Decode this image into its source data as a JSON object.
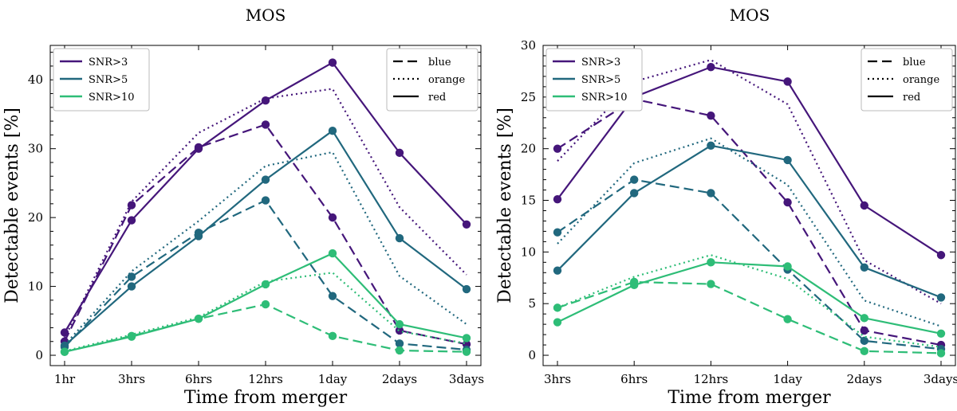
{
  "colors": {
    "snr3": "#45167a",
    "snr5": "#21687e",
    "snr10": "#2ebd77"
  },
  "chart_data": [
    {
      "type": "line",
      "title": "MOS",
      "xlabel": "Time from merger",
      "ylabel": "Detectable events [%]",
      "categories": [
        "1hr",
        "3hrs",
        "6hrs",
        "12hrs",
        "1day",
        "2days",
        "3days"
      ],
      "ylim": [
        -1.5,
        45
      ],
      "yticks": [
        0,
        10,
        20,
        30,
        40
      ],
      "legend_snr": [
        "SNR>3",
        "SNR>5",
        "SNR>10"
      ],
      "legend_style": [
        "blue",
        "orange",
        "red"
      ],
      "legend_snr_placement": "top-left",
      "legend_style_placement": "top-right",
      "series": [
        {
          "snr": "SNR>3",
          "style": "red",
          "values": [
            3.3,
            19.6,
            30.0,
            37.0,
            42.5,
            29.4,
            19.0
          ]
        },
        {
          "snr": "SNR>3",
          "style": "blue",
          "values": [
            2.0,
            21.8,
            30.2,
            33.5,
            20.0,
            3.6,
            1.6
          ]
        },
        {
          "snr": "SNR>3",
          "style": "orange",
          "values": [
            2.5,
            22.3,
            32.3,
            37.3,
            38.7,
            21.5,
            11.7
          ]
        },
        {
          "snr": "SNR>5",
          "style": "red",
          "values": [
            1.4,
            10.0,
            17.3,
            25.5,
            32.6,
            17.0,
            9.6
          ]
        },
        {
          "snr": "SNR>5",
          "style": "blue",
          "values": [
            1.2,
            11.4,
            17.8,
            22.5,
            8.6,
            1.7,
            0.8
          ]
        },
        {
          "snr": "SNR>5",
          "style": "orange",
          "values": [
            1.5,
            12.2,
            19.5,
            27.5,
            29.5,
            11.5,
            4.5
          ]
        },
        {
          "snr": "SNR>10",
          "style": "red",
          "values": [
            0.5,
            2.7,
            5.3,
            10.3,
            14.8,
            4.5,
            2.5
          ]
        },
        {
          "snr": "SNR>10",
          "style": "blue",
          "values": [
            0.5,
            2.8,
            5.3,
            7.4,
            2.8,
            0.7,
            0.5
          ]
        },
        {
          "snr": "SNR>10",
          "style": "orange",
          "values": [
            0.6,
            3.0,
            5.5,
            10.7,
            12.0,
            3.5,
            1.7
          ]
        }
      ]
    },
    {
      "type": "line",
      "title": "MOS",
      "xlabel": "Time from merger",
      "ylabel": "Detectable events [%]",
      "categories": [
        "3hrs",
        "6hrs",
        "12hrs",
        "1day",
        "2days",
        "3days"
      ],
      "ylim": [
        -1,
        30
      ],
      "yticks": [
        0,
        5,
        10,
        15,
        20,
        25,
        30
      ],
      "legend_snr": [
        "SNR>3",
        "SNR>5",
        "SNR>10"
      ],
      "legend_style": [
        "blue",
        "orange",
        "red"
      ],
      "legend_snr_placement": "top-left",
      "legend_style_placement": "top-right",
      "series": [
        {
          "snr": "SNR>3",
          "style": "red",
          "values": [
            15.1,
            25.0,
            27.9,
            26.5,
            14.5,
            9.7
          ]
        },
        {
          "snr": "SNR>3",
          "style": "blue",
          "values": [
            20.0,
            24.8,
            23.2,
            14.8,
            2.4,
            1.0
          ]
        },
        {
          "snr": "SNR>3",
          "style": "orange",
          "values": [
            18.8,
            26.5,
            28.6,
            24.3,
            9.2,
            5.0
          ]
        },
        {
          "snr": "SNR>5",
          "style": "red",
          "values": [
            8.2,
            15.7,
            20.3,
            18.9,
            8.5,
            5.6
          ]
        },
        {
          "snr": "SNR>5",
          "style": "blue",
          "values": [
            11.9,
            17.0,
            15.7,
            8.3,
            1.4,
            0.6
          ]
        },
        {
          "snr": "SNR>5",
          "style": "orange",
          "values": [
            10.8,
            18.6,
            21.0,
            16.5,
            5.3,
            2.8
          ]
        },
        {
          "snr": "SNR>10",
          "style": "red",
          "values": [
            3.2,
            6.8,
            9.0,
            8.6,
            3.6,
            2.1
          ]
        },
        {
          "snr": "SNR>10",
          "style": "blue",
          "values": [
            4.6,
            7.1,
            6.9,
            3.5,
            0.4,
            0.2
          ]
        },
        {
          "snr": "SNR>10",
          "style": "orange",
          "values": [
            4.6,
            7.6,
            9.7,
            7.4,
            1.8,
            0.8
          ]
        }
      ]
    }
  ]
}
